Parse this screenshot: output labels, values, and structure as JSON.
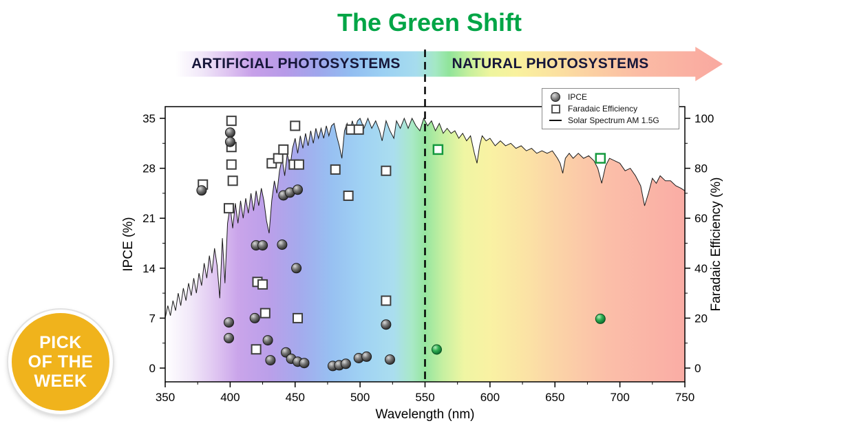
{
  "title": {
    "text": "The Green Shift",
    "color": "#00a546"
  },
  "banner": {
    "left_label": "ARTIFICIAL PHOTOSYSTEMS",
    "right_label": "NATURAL PHOTOSYSTEMS",
    "text_color": "#17173a"
  },
  "badge": {
    "lines": [
      "PICK",
      "OF THE",
      "WEEK"
    ],
    "bg_color": "#f0b31c",
    "text_color": "#ffffff"
  },
  "chart_data": {
    "type": "scatter",
    "title": "The Green Shift",
    "xlabel": "Wavelength (nm)",
    "ylabel_left": "IPCE (%)",
    "ylabel_right": "Faradaic Efficiency (%)",
    "xlim": [
      350,
      750
    ],
    "xticks": [
      350,
      400,
      450,
      500,
      550,
      600,
      650,
      700,
      750
    ],
    "ylim_left": [
      0,
      35
    ],
    "yticks_left": [
      0,
      7,
      14,
      21,
      28,
      35
    ],
    "ylim_right": [
      0,
      100
    ],
    "yticks_right": [
      0,
      20,
      40,
      60,
      80,
      100
    ],
    "divider_x": 550,
    "grid": false,
    "legend_position": "top-right",
    "gradient_stops": [
      {
        "o": 0.0,
        "c": "#ffffff"
      },
      {
        "o": 0.05,
        "c": "#f0e6f8"
      },
      {
        "o": 0.1,
        "c": "#dcc0f0"
      },
      {
        "o": 0.14,
        "c": "#c7a0e9"
      },
      {
        "o": 0.2,
        "c": "#b79ae8"
      },
      {
        "o": 0.26,
        "c": "#9fa6ec"
      },
      {
        "o": 0.32,
        "c": "#92bdf1"
      },
      {
        "o": 0.38,
        "c": "#9bd0f3"
      },
      {
        "o": 0.44,
        "c": "#a6dcee"
      },
      {
        "o": 0.475,
        "c": "#a4e8c4"
      },
      {
        "o": 0.5,
        "c": "#90e49a"
      },
      {
        "o": 0.535,
        "c": "#c4ef9c"
      },
      {
        "o": 0.575,
        "c": "#eef59e"
      },
      {
        "o": 0.625,
        "c": "#f9f19e"
      },
      {
        "o": 0.7,
        "c": "#fbe0a0"
      },
      {
        "o": 0.75,
        "c": "#fbd2a2"
      },
      {
        "o": 0.85,
        "c": "#fbbba4"
      },
      {
        "o": 1.0,
        "c": "#f9a8a0"
      }
    ],
    "series": [
      {
        "name": "IPCE",
        "marker": "circle",
        "axis": "left",
        "color": "#4a4a4a",
        "green_color": "#1d9e45",
        "points": [
          [
            378,
            24.9
          ],
          [
            400,
            33.0
          ],
          [
            400,
            31.7
          ],
          [
            399,
            6.4
          ],
          [
            399,
            4.2
          ],
          [
            419,
            7.0
          ],
          [
            420,
            17.2
          ],
          [
            425,
            17.2
          ],
          [
            429,
            3.9
          ],
          [
            431,
            1.1
          ],
          [
            440,
            17.3
          ],
          [
            441,
            24.2
          ],
          [
            446,
            24.6
          ],
          [
            443,
            2.2
          ],
          [
            447,
            1.3
          ],
          [
            451,
            14.0
          ],
          [
            452,
            25.0
          ],
          [
            452,
            0.9
          ],
          [
            457,
            0.7
          ],
          [
            479,
            0.3
          ],
          [
            484,
            0.4
          ],
          [
            489,
            0.6
          ],
          [
            499,
            1.4
          ],
          [
            505,
            1.6
          ],
          [
            520,
            6.1
          ],
          [
            523,
            1.2
          ]
        ],
        "green_points": [
          [
            559,
            2.6
          ],
          [
            685,
            6.9
          ]
        ]
      },
      {
        "name": "Faradaic Efficiency",
        "marker": "square",
        "axis": "right",
        "color": "#3d3d3d",
        "green_color": "#14993e",
        "points": [
          [
            379,
            73.5
          ],
          [
            401,
            99
          ],
          [
            401,
            88.5
          ],
          [
            401,
            81.5
          ],
          [
            402,
            75
          ],
          [
            399,
            64
          ],
          [
            421,
            34.5
          ],
          [
            425,
            33.5
          ],
          [
            420,
            7.5
          ],
          [
            427,
            22
          ],
          [
            432,
            82
          ],
          [
            437,
            84
          ],
          [
            441,
            87.5
          ],
          [
            450,
            97
          ],
          [
            449,
            81.5
          ],
          [
            453,
            81.5
          ],
          [
            452,
            20
          ],
          [
            481,
            79.5
          ],
          [
            491,
            69
          ],
          [
            493,
            95.5
          ],
          [
            499,
            95.5
          ],
          [
            520,
            79
          ],
          [
            520,
            27
          ]
        ],
        "green_points": [
          [
            560,
            87.5
          ],
          [
            685,
            84
          ]
        ]
      },
      {
        "name": "Solar Spectrum AM 1.5G",
        "marker": "line",
        "axis": "right",
        "color": "#1a1a1a",
        "points": [
          [
            350,
            20
          ],
          [
            352,
            25
          ],
          [
            354,
            21
          ],
          [
            356,
            27
          ],
          [
            358,
            23
          ],
          [
            360,
            30
          ],
          [
            362,
            25
          ],
          [
            364,
            32
          ],
          [
            366,
            27
          ],
          [
            368,
            34
          ],
          [
            370,
            29
          ],
          [
            372,
            36
          ],
          [
            374,
            30
          ],
          [
            376,
            38
          ],
          [
            378,
            33
          ],
          [
            380,
            42
          ],
          [
            382,
            36
          ],
          [
            384,
            45
          ],
          [
            386,
            38
          ],
          [
            388,
            48
          ],
          [
            390,
            41
          ],
          [
            392,
            28
          ],
          [
            394,
            52
          ],
          [
            396,
            34
          ],
          [
            398,
            58
          ],
          [
            400,
            65
          ],
          [
            402,
            56
          ],
          [
            404,
            66
          ],
          [
            406,
            58
          ],
          [
            408,
            67
          ],
          [
            410,
            60
          ],
          [
            412,
            68
          ],
          [
            414,
            62
          ],
          [
            416,
            70
          ],
          [
            418,
            63
          ],
          [
            420,
            71
          ],
          [
            422,
            65
          ],
          [
            424,
            72
          ],
          [
            426,
            67
          ],
          [
            428,
            59
          ],
          [
            430,
            54
          ],
          [
            432,
            67
          ],
          [
            434,
            75
          ],
          [
            436,
            70
          ],
          [
            438,
            79
          ],
          [
            440,
            84
          ],
          [
            442,
            77
          ],
          [
            444,
            86
          ],
          [
            446,
            80
          ],
          [
            448,
            88
          ],
          [
            450,
            92
          ],
          [
            452,
            86
          ],
          [
            454,
            93
          ],
          [
            456,
            88
          ],
          [
            458,
            94
          ],
          [
            460,
            89
          ],
          [
            462,
            95
          ],
          [
            464,
            90
          ],
          [
            466,
            96
          ],
          [
            468,
            92
          ],
          [
            470,
            96
          ],
          [
            472,
            92
          ],
          [
            474,
            97
          ],
          [
            476,
            93
          ],
          [
            478,
            97
          ],
          [
            480,
            98
          ],
          [
            482,
            93
          ],
          [
            484,
            89
          ],
          [
            486,
            84
          ],
          [
            488,
            95
          ],
          [
            490,
            98
          ],
          [
            492,
            94
          ],
          [
            494,
            99
          ],
          [
            496,
            95
          ],
          [
            498,
            99
          ],
          [
            500,
            100
          ],
          [
            503,
            96
          ],
          [
            506,
            100
          ],
          [
            509,
            96
          ],
          [
            512,
            99
          ],
          [
            515,
            95
          ],
          [
            517,
            91
          ],
          [
            520,
            99
          ],
          [
            523,
            95
          ],
          [
            526,
            92
          ],
          [
            528,
            99
          ],
          [
            531,
            96
          ],
          [
            534,
            100
          ],
          [
            537,
            96
          ],
          [
            540,
            100
          ],
          [
            543,
            97
          ],
          [
            546,
            95
          ],
          [
            549,
            100
          ],
          [
            552,
            97
          ],
          [
            555,
            99
          ],
          [
            558,
            95
          ],
          [
            561,
            98
          ],
          [
            564,
            94
          ],
          [
            567,
            96
          ],
          [
            570,
            94
          ],
          [
            573,
            95
          ],
          [
            576,
            92
          ],
          [
            579,
            94
          ],
          [
            582,
            91
          ],
          [
            585,
            93
          ],
          [
            588,
            86
          ],
          [
            590,
            82
          ],
          [
            592,
            89
          ],
          [
            594,
            93
          ],
          [
            597,
            91
          ],
          [
            600,
            92
          ],
          [
            604,
            89
          ],
          [
            608,
            91
          ],
          [
            612,
            89
          ],
          [
            616,
            90
          ],
          [
            620,
            88
          ],
          [
            624,
            89
          ],
          [
            628,
            87
          ],
          [
            632,
            88
          ],
          [
            636,
            86
          ],
          [
            640,
            87
          ],
          [
            644,
            86
          ],
          [
            648,
            87
          ],
          [
            652,
            84
          ],
          [
            654,
            82
          ],
          [
            656,
            78
          ],
          [
            658,
            84
          ],
          [
            661,
            86
          ],
          [
            664,
            84
          ],
          [
            668,
            86
          ],
          [
            672,
            84
          ],
          [
            676,
            85
          ],
          [
            680,
            83
          ],
          [
            683,
            80
          ],
          [
            686,
            74
          ],
          [
            689,
            81
          ],
          [
            692,
            84
          ],
          [
            696,
            83
          ],
          [
            700,
            82
          ],
          [
            704,
            79
          ],
          [
            708,
            80
          ],
          [
            712,
            77
          ],
          [
            716,
            73
          ],
          [
            719,
            65
          ],
          [
            722,
            70
          ],
          [
            725,
            76
          ],
          [
            728,
            74
          ],
          [
            731,
            77
          ],
          [
            735,
            75
          ],
          [
            739,
            75
          ],
          [
            743,
            73
          ],
          [
            747,
            72
          ],
          [
            750,
            71
          ]
        ]
      }
    ]
  }
}
